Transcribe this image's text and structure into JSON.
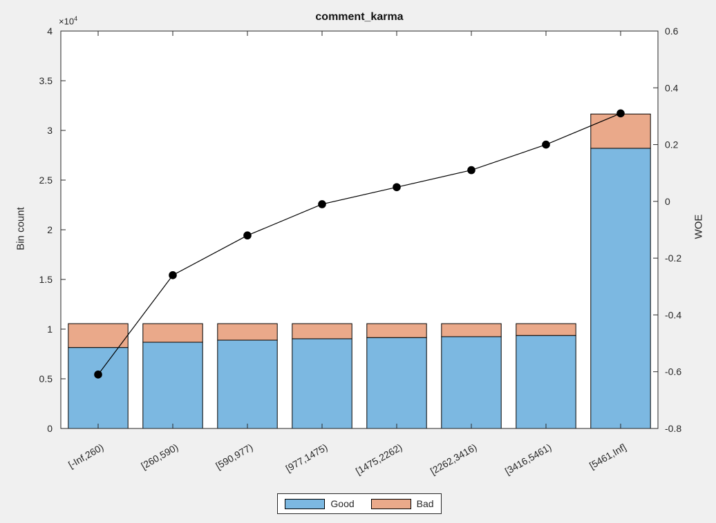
{
  "figure": {
    "background_color": "#f0f0f0",
    "plot_background_color": "#ffffff"
  },
  "chart_data": {
    "type": "bar",
    "stacked": true,
    "overlay": "line",
    "title": "comment_karma",
    "grid": false,
    "categories": [
      "[-Inf,260)",
      "[260,590)",
      "[590,977)",
      "[977,1475)",
      "[1475,2262)",
      "[2262,3416)",
      "[3416,5461)",
      "[5461,Inf]"
    ],
    "series": [
      {
        "name": "Good",
        "color": "#7CB8E1",
        "edge_color": "#000000",
        "values": [
          8150,
          8680,
          8890,
          9030,
          9150,
          9240,
          9360,
          28200
        ]
      },
      {
        "name": "Bad",
        "color": "#EAA98A",
        "edge_color": "#000000",
        "values": [
          2400,
          1870,
          1660,
          1520,
          1400,
          1310,
          1190,
          3450
        ]
      }
    ],
    "line_series": {
      "name": "WOE",
      "color": "#000000",
      "marker": "filled-circle",
      "values": [
        -0.61,
        -0.26,
        -0.12,
        -0.01,
        0.05,
        0.11,
        0.2,
        0.31
      ]
    },
    "left_axis": {
      "label": "Bin count",
      "multiplier_base": "×10",
      "multiplier_exp": "4",
      "min": 0,
      "max": 40000,
      "tick_values": [
        0,
        5000,
        10000,
        15000,
        20000,
        25000,
        30000,
        35000,
        40000
      ],
      "tick_labels": [
        "0",
        "0.5",
        "1",
        "1.5",
        "2",
        "2.5",
        "3",
        "3.5",
        "4"
      ]
    },
    "right_axis": {
      "label": "WOE",
      "min": -0.8,
      "max": 0.6,
      "tick_values": [
        -0.8,
        -0.6,
        -0.4,
        -0.2,
        0,
        0.2,
        0.4,
        0.6
      ],
      "tick_labels": [
        "-0.8",
        "-0.6",
        "-0.4",
        "-0.2",
        "0",
        "0.2",
        "0.4",
        "0.6"
      ]
    },
    "legend": {
      "position": "bottom-outside"
    }
  }
}
